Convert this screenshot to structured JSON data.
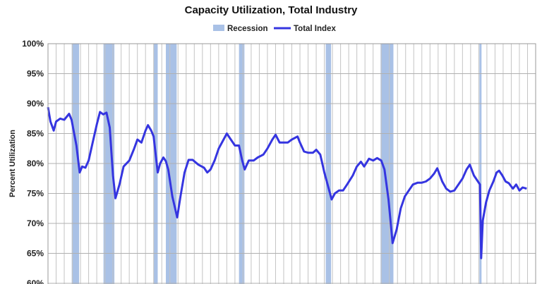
{
  "chart_data": {
    "type": "line",
    "title": "Capacity Utilization, Total Industry",
    "xlabel": "",
    "ylabel": "Percent Utilization",
    "xlim": [
      1967,
      2027
    ],
    "ylim": [
      60,
      100
    ],
    "y_ticks": [
      "60%",
      "65%",
      "70%",
      "75%",
      "80%",
      "85%",
      "90%",
      "95%",
      "100%"
    ],
    "grid": true,
    "legend_position": "top",
    "legend": [
      "Recession",
      "Total Index"
    ],
    "colors": {
      "recession": "#a9c1e6",
      "line": "#3535e0",
      "grid": "#b0b0b0"
    },
    "recessions": [
      [
        1969.92,
        1970.83
      ],
      [
        1973.83,
        1975.17
      ],
      [
        1980.0,
        1980.5
      ],
      [
        1981.5,
        1982.83
      ],
      [
        1990.5,
        1991.17
      ],
      [
        2001.17,
        2001.83
      ],
      [
        2007.92,
        2009.5
      ],
      [
        2020.08,
        2020.33
      ]
    ],
    "series": [
      {
        "name": "Total Index",
        "x": [
          1967.0,
          1967.3,
          1967.7,
          1968.0,
          1968.5,
          1969.0,
          1969.6,
          1969.9,
          1970.5,
          1970.9,
          1971.2,
          1971.6,
          1972.0,
          1972.5,
          1973.0,
          1973.4,
          1973.8,
          1974.2,
          1974.6,
          1975.0,
          1975.3,
          1975.8,
          1976.3,
          1977.0,
          1977.6,
          1978.0,
          1978.5,
          1979.0,
          1979.3,
          1979.7,
          1980.0,
          1980.5,
          1980.8,
          1981.2,
          1981.5,
          1981.8,
          1982.3,
          1982.9,
          1983.3,
          1983.8,
          1984.3,
          1984.8,
          1985.5,
          1986.2,
          1986.6,
          1987.0,
          1987.5,
          1988.0,
          1988.6,
          1989.0,
          1989.5,
          1990.0,
          1990.5,
          1990.9,
          1991.2,
          1991.7,
          1992.3,
          1992.8,
          1993.5,
          1994.0,
          1994.6,
          1995.0,
          1995.5,
          1996.0,
          1996.5,
          1997.0,
          1997.7,
          1998.0,
          1998.5,
          1999.0,
          1999.6,
          2000.0,
          2000.5,
          2001.0,
          2001.6,
          2001.9,
          2002.3,
          2002.8,
          2003.3,
          2003.8,
          2004.5,
          2005.0,
          2005.5,
          2005.9,
          2006.5,
          2007.0,
          2007.5,
          2008.0,
          2008.4,
          2008.9,
          2009.4,
          2009.9,
          2010.4,
          2010.9,
          2011.4,
          2011.9,
          2012.5,
          2013.0,
          2013.5,
          2014.0,
          2014.5,
          2014.9,
          2015.5,
          2016.0,
          2016.5,
          2017.0,
          2017.5,
          2018.0,
          2018.5,
          2018.9,
          2019.4,
          2019.9,
          2020.15,
          2020.3,
          2020.5,
          2020.9,
          2021.3,
          2021.8,
          2022.2,
          2022.5,
          2022.9,
          2023.3,
          2023.7,
          2024.2,
          2024.6,
          2025.0,
          2025.4,
          2025.9
        ],
        "values": [
          89.4,
          87.0,
          85.5,
          87.0,
          87.5,
          87.3,
          88.3,
          87.3,
          83.0,
          78.5,
          79.5,
          79.3,
          80.5,
          83.5,
          86.5,
          88.6,
          88.2,
          88.5,
          86.0,
          78.0,
          74.2,
          76.5,
          79.5,
          80.5,
          82.5,
          84.0,
          83.5,
          85.5,
          86.4,
          85.5,
          84.5,
          78.5,
          80.0,
          81.0,
          80.4,
          79.0,
          74.5,
          71.0,
          74.5,
          78.5,
          80.6,
          80.6,
          79.8,
          79.3,
          78.5,
          79.0,
          80.5,
          82.5,
          84.0,
          85.0,
          84.0,
          83.0,
          83.0,
          80.5,
          79.0,
          80.5,
          80.5,
          81.0,
          81.5,
          82.5,
          84.0,
          84.8,
          83.5,
          83.5,
          83.5,
          84.0,
          84.5,
          83.5,
          82.0,
          81.8,
          81.8,
          82.3,
          81.5,
          78.5,
          75.5,
          74.0,
          75.0,
          75.5,
          75.5,
          76.5,
          78.0,
          79.5,
          80.3,
          79.5,
          80.8,
          80.5,
          80.9,
          80.5,
          79.0,
          74.0,
          66.7,
          69.0,
          72.5,
          74.5,
          75.5,
          76.5,
          76.8,
          76.8,
          77.0,
          77.5,
          78.3,
          79.2,
          77.0,
          75.8,
          75.3,
          75.5,
          76.5,
          77.5,
          79.0,
          79.8,
          78.0,
          77.0,
          76.5,
          64.2,
          70.5,
          73.5,
          75.5,
          77.0,
          78.5,
          78.8,
          78.0,
          77.0,
          76.7,
          75.8,
          76.5,
          75.5,
          76.0,
          75.8
        ]
      }
    ]
  }
}
